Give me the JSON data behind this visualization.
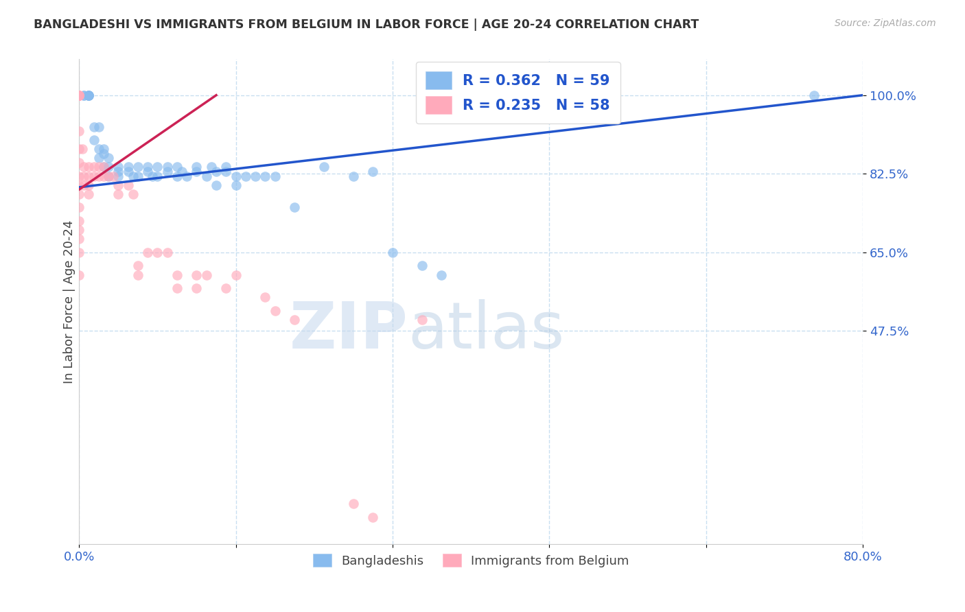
{
  "title": "BANGLADESHI VS IMMIGRANTS FROM BELGIUM IN LABOR FORCE | AGE 20-24 CORRELATION CHART",
  "source": "Source: ZipAtlas.com",
  "ylabel": "In Labor Force | Age 20-24",
  "x_min": 0.0,
  "x_max": 0.8,
  "y_min": 0.0,
  "y_max": 1.08,
  "x_ticks": [
    0.0,
    0.16,
    0.32,
    0.48,
    0.64,
    0.8
  ],
  "x_tick_labels": [
    "0.0%",
    "",
    "",
    "",
    "",
    "80.0%"
  ],
  "y_ticks": [
    0.475,
    0.65,
    0.825,
    1.0
  ],
  "y_tick_labels": [
    "47.5%",
    "65.0%",
    "82.5%",
    "100.0%"
  ],
  "grid_color": "#c8dff0",
  "background_color": "#ffffff",
  "blue_color": "#88bbee",
  "pink_color": "#ffaabb",
  "blue_line_color": "#2255cc",
  "pink_line_color": "#cc2255",
  "legend_label_blue": "Bangladeshis",
  "legend_label_pink": "Immigrants from Belgium",
  "watermark_zip": "ZIP",
  "watermark_atlas": "atlas",
  "blue_scatter_x": [
    0.005,
    0.005,
    0.01,
    0.01,
    0.01,
    0.01,
    0.01,
    0.015,
    0.015,
    0.02,
    0.02,
    0.02,
    0.025,
    0.025,
    0.025,
    0.03,
    0.03,
    0.03,
    0.04,
    0.04,
    0.04,
    0.05,
    0.05,
    0.055,
    0.06,
    0.06,
    0.07,
    0.07,
    0.075,
    0.08,
    0.08,
    0.09,
    0.09,
    0.1,
    0.1,
    0.105,
    0.11,
    0.12,
    0.12,
    0.13,
    0.135,
    0.14,
    0.14,
    0.15,
    0.15,
    0.16,
    0.16,
    0.17,
    0.18,
    0.19,
    0.2,
    0.22,
    0.25,
    0.28,
    0.3,
    0.32,
    0.35,
    0.37,
    0.75
  ],
  "blue_scatter_y": [
    1.0,
    1.0,
    1.0,
    1.0,
    1.0,
    1.0,
    1.0,
    0.93,
    0.9,
    0.88,
    0.86,
    0.93,
    0.88,
    0.87,
    0.84,
    0.86,
    0.84,
    0.82,
    0.84,
    0.83,
    0.82,
    0.84,
    0.83,
    0.82,
    0.84,
    0.82,
    0.84,
    0.83,
    0.82,
    0.84,
    0.82,
    0.84,
    0.83,
    0.84,
    0.82,
    0.83,
    0.82,
    0.84,
    0.83,
    0.82,
    0.84,
    0.83,
    0.8,
    0.84,
    0.83,
    0.82,
    0.8,
    0.82,
    0.82,
    0.82,
    0.82,
    0.75,
    0.84,
    0.82,
    0.83,
    0.65,
    0.62,
    0.6,
    1.0
  ],
  "pink_scatter_x": [
    0.0,
    0.0,
    0.0,
    0.0,
    0.0,
    0.0,
    0.0,
    0.0,
    0.0,
    0.0,
    0.0,
    0.0,
    0.0,
    0.0,
    0.0,
    0.0,
    0.0,
    0.0,
    0.0,
    0.0,
    0.003,
    0.005,
    0.005,
    0.005,
    0.01,
    0.01,
    0.01,
    0.01,
    0.015,
    0.015,
    0.02,
    0.02,
    0.025,
    0.025,
    0.03,
    0.035,
    0.04,
    0.04,
    0.05,
    0.055,
    0.06,
    0.06,
    0.07,
    0.08,
    0.09,
    0.1,
    0.1,
    0.12,
    0.12,
    0.13,
    0.15,
    0.16,
    0.19,
    0.2,
    0.22,
    0.28,
    0.3,
    0.35
  ],
  "pink_scatter_y": [
    1.0,
    1.0,
    1.0,
    1.0,
    1.0,
    1.0,
    1.0,
    1.0,
    0.92,
    0.88,
    0.85,
    0.82,
    0.8,
    0.78,
    0.75,
    0.72,
    0.7,
    0.68,
    0.65,
    0.6,
    0.88,
    0.84,
    0.82,
    0.8,
    0.84,
    0.82,
    0.8,
    0.78,
    0.84,
    0.82,
    0.84,
    0.82,
    0.84,
    0.82,
    0.82,
    0.82,
    0.8,
    0.78,
    0.8,
    0.78,
    0.62,
    0.6,
    0.65,
    0.65,
    0.65,
    0.6,
    0.57,
    0.6,
    0.57,
    0.6,
    0.57,
    0.6,
    0.55,
    0.52,
    0.5,
    0.09,
    0.06,
    0.5
  ],
  "blue_line_x0": 0.0,
  "blue_line_x1": 0.8,
  "blue_line_y0": 0.795,
  "blue_line_y1": 1.0,
  "pink_line_x0": 0.0,
  "pink_line_x1": 0.14,
  "pink_line_y0": 0.79,
  "pink_line_y1": 1.0
}
